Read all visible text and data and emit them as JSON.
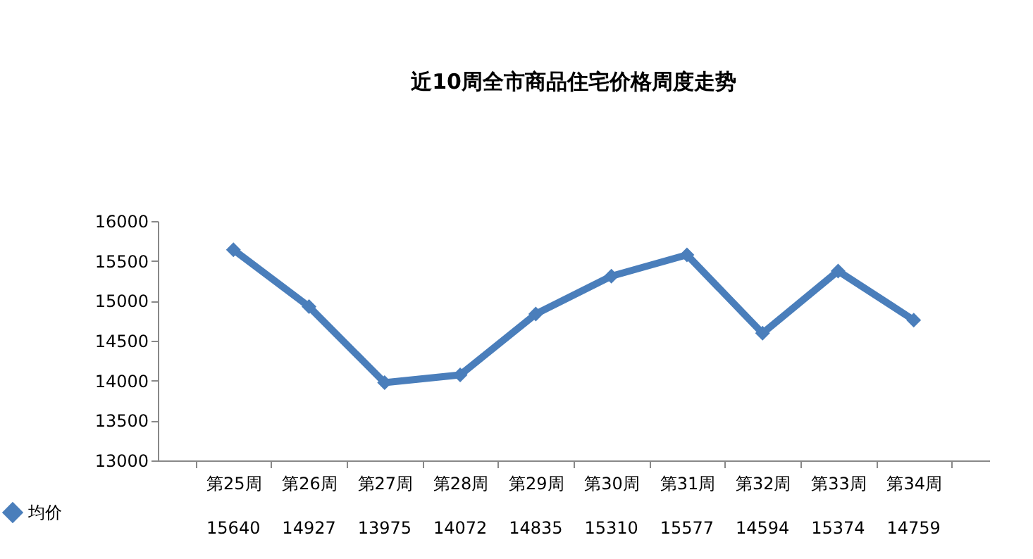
{
  "chart_data": {
    "type": "line",
    "title": "近10周全市商品住宅价格周度走势",
    "categories": [
      "第25周",
      "第26周",
      "第27周",
      "第28周",
      "第29周",
      "第30周",
      "第31周",
      "第32周",
      "第33周",
      "第34周"
    ],
    "series": [
      {
        "name": "均价",
        "color": "#4a7ebb",
        "values": [
          15640,
          14927,
          13975,
          14072,
          14835,
          15310,
          15577,
          14594,
          15374,
          14759
        ]
      }
    ],
    "ylim": [
      13000,
      16000
    ],
    "yticks": [
      13000,
      13500,
      14000,
      14500,
      15000,
      15500,
      16000
    ],
    "marker": "diamond",
    "line_style": "solid",
    "data_labels": true,
    "legend": "bottom left"
  }
}
